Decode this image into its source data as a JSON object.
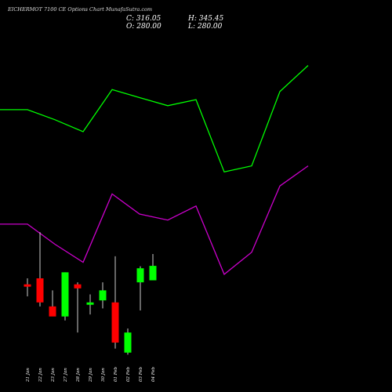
{
  "header": {
    "title": "EICHERMOT 7100 CE Options Chart MunafaSutra.com",
    "close": "C: 316.05",
    "high": "H: 345.45",
    "open": "O: 280.00",
    "low": "L: 280.00"
  },
  "colors": {
    "background": "#000000",
    "bullish": "#00ff00",
    "bearish": "#ff0000",
    "neutral": "#ff0000",
    "upper_line": "#00ff00",
    "lower_line": "#cc00cc",
    "wick": "#ffffff",
    "text": "#ffffff"
  },
  "chart_data": {
    "type": "candlestick",
    "title": "EICHERMOT 7100 CE Options Chart MunafaSutra.com",
    "categories": [
      "21 Jan",
      "22 Jan",
      "23 Jan",
      "27 Jan",
      "28 Jan",
      "29 Jan",
      "30 Jan",
      "01 Feb",
      "02 Feb",
      "03 Feb",
      "04 Feb"
    ],
    "ohlc": [
      {
        "date": "21 Jan",
        "open": 270,
        "high": 285,
        "low": 240,
        "close": 265
      },
      {
        "date": "22 Jan",
        "open": 285,
        "high": 400,
        "low": 215,
        "close": 225
      },
      {
        "date": "23 Jan",
        "open": 215,
        "high": 255,
        "low": 195,
        "close": 190
      },
      {
        "date": "27 Jan",
        "open": 190,
        "high": 300,
        "low": 180,
        "close": 300
      },
      {
        "date": "28 Jan",
        "open": 270,
        "high": 275,
        "low": 150,
        "close": 260
      },
      {
        "date": "29 Jan",
        "open": 220,
        "high": 245,
        "low": 195,
        "close": 225
      },
      {
        "date": "30 Jan",
        "open": 230,
        "high": 275,
        "low": 210,
        "close": 255
      },
      {
        "date": "01 Feb",
        "open": 225,
        "high": 340,
        "low": 110,
        "close": 125
      },
      {
        "date": "02 Feb",
        "open": 100,
        "high": 160,
        "low": 95,
        "close": 150
      },
      {
        "date": "03 Feb",
        "open": 275,
        "high": 315,
        "low": 205,
        "close": 310
      },
      {
        "date": "04 Feb",
        "open": 280,
        "high": 345.45,
        "low": 280,
        "close": 316.05
      }
    ],
    "upper_band": [
      705,
      705,
      680,
      650,
      755,
      735,
      715,
      730,
      550,
      565,
      750,
      815
    ],
    "lower_band": [
      420,
      420,
      370,
      325,
      495,
      445,
      430,
      465,
      295,
      350,
      515,
      565
    ],
    "band_x": [
      "21 Jan",
      "22 Jan",
      "23 Jan",
      "27 Jan",
      "28 Jan",
      "29 Jan",
      "30 Jan",
      "01 Feb",
      "02 Feb",
      "03 Feb",
      "04 Feb",
      "05 Feb"
    ],
    "ylim": [
      80,
      900
    ],
    "grid": false
  }
}
